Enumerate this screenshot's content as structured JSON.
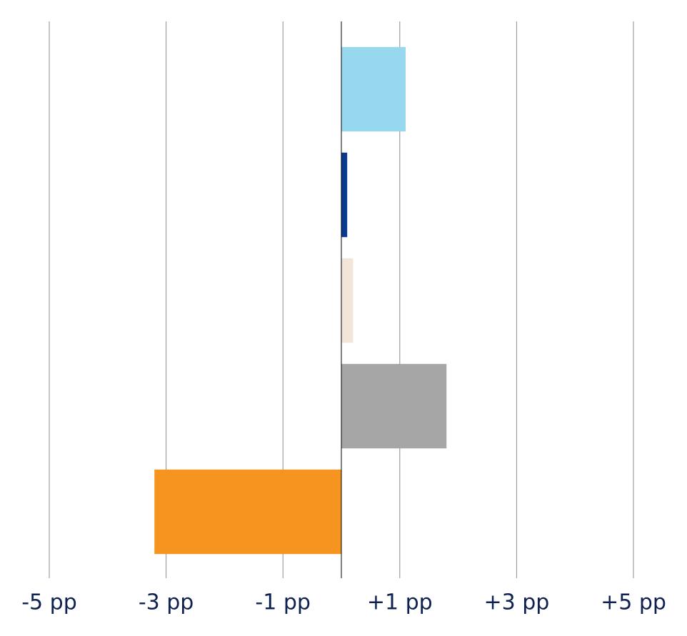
{
  "chart_data": {
    "type": "hbar",
    "categories": [
      null,
      null,
      null,
      null,
      null
    ],
    "values": [
      1.1,
      0.1,
      0.2,
      1.8,
      -3.2
    ],
    "colors": [
      "#97d8ef",
      "#0a3a8f",
      "#f3e6d8",
      "#a6a6a6",
      "#f69420"
    ],
    "xlim": [
      -5,
      5
    ],
    "xticks": [
      {
        "value": -5,
        "label": "-5 pp"
      },
      {
        "value": -3,
        "label": "-3 pp"
      },
      {
        "value": -1,
        "label": "-1 pp"
      },
      {
        "value": 1,
        "label": "+1 pp"
      },
      {
        "value": 3,
        "label": "+3 pp"
      },
      {
        "value": 5,
        "label": "+5 pp"
      }
    ],
    "grid": true
  }
}
